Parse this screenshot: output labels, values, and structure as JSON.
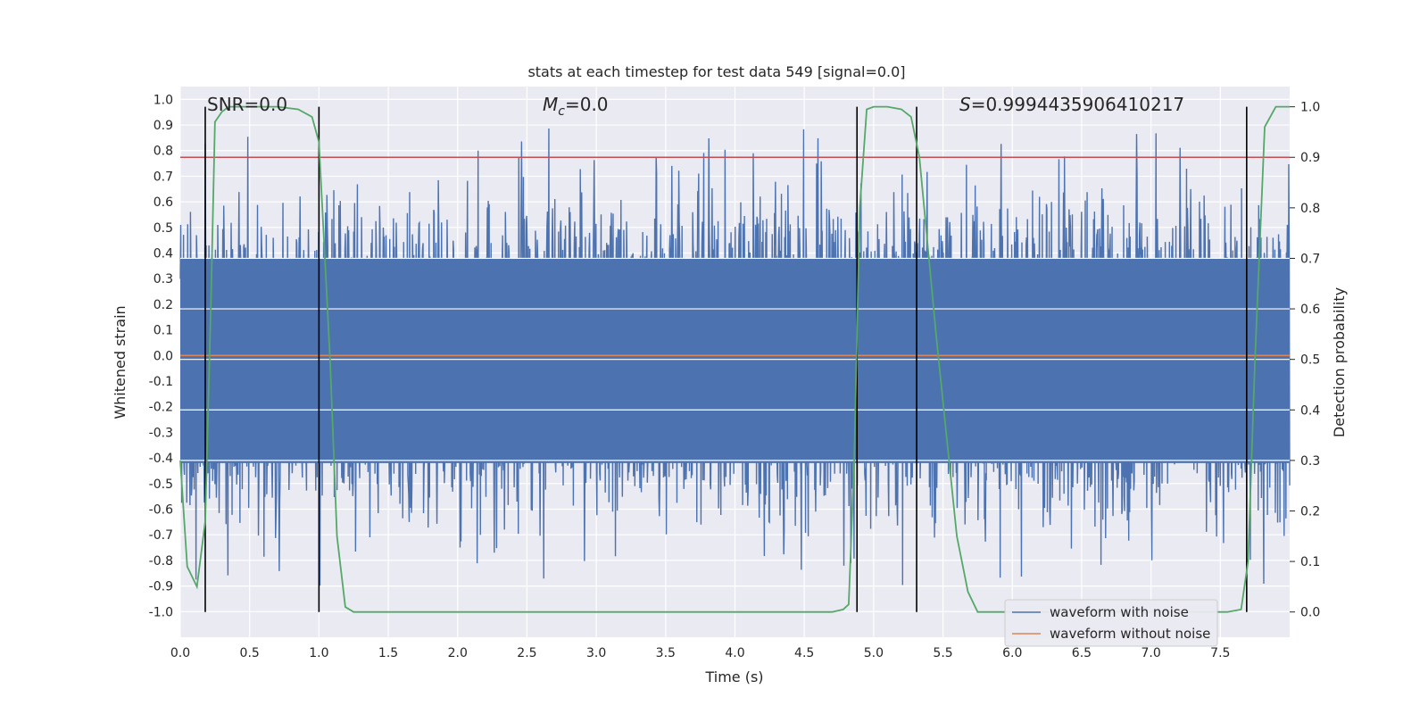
{
  "chart_data": {
    "type": "line",
    "title": "stats at each timestep for test data 549 [signal=0.0]",
    "xlabel": "Time (s)",
    "ylabel": "Whitened strain",
    "y2label": "Detection probability",
    "xlim": [
      0.0,
      8.0
    ],
    "ylim": [
      -1.1,
      1.05
    ],
    "y2lim": [
      -0.05,
      1.04
    ],
    "x_ticks": [
      "0.0",
      "0.5",
      "1.0",
      "1.5",
      "2.0",
      "2.5",
      "3.0",
      "3.5",
      "4.0",
      "4.5",
      "5.0",
      "5.5",
      "6.0",
      "6.5",
      "7.0",
      "7.5"
    ],
    "y_ticks": [
      "1.0",
      "0.9",
      "0.8",
      "0.7",
      "0.6",
      "0.5",
      "0.4",
      "0.3",
      "0.2",
      "0.1",
      "0.0",
      "-0.1",
      "-0.2",
      "-0.3",
      "-0.4",
      "-0.5",
      "-0.6",
      "-0.7",
      "-0.8",
      "-0.9",
      "-1.0"
    ],
    "y2_ticks": [
      "1.0",
      "0.9",
      "0.8",
      "0.7",
      "0.6",
      "0.5",
      "0.4",
      "0.3",
      "0.2",
      "0.1",
      "0.0"
    ],
    "grid": true,
    "legend_position": "bottom-right",
    "annotations": {
      "snr": "SNR=0.0",
      "mc_symbol": "M",
      "mc_sub": "c",
      "mc_value": "=0.0",
      "s_symbol": "S",
      "s_value": "=0.9994435906410217"
    },
    "series": [
      {
        "name": "waveform with noise",
        "color": "#4c72b0",
        "note_shape": "noise band",
        "core_envelope": [
          -0.42,
          0.38
        ],
        "typical_peak_high": 0.55,
        "typical_peak_low": -0.55,
        "max_spike": 0.97,
        "min_spike": -1.0
      },
      {
        "name": "waveform without noise",
        "color": "#dd8452",
        "y": 0.0
      },
      {
        "name": "detection probability",
        "color": "#55a868",
        "axis": "right",
        "x": [
          0.0,
          0.05,
          0.12,
          0.18,
          0.22,
          0.25,
          0.3,
          0.35,
          0.5,
          0.7,
          0.85,
          0.95,
          1.0,
          1.08,
          1.13,
          1.19,
          1.25,
          4.7,
          4.78,
          4.82,
          4.86,
          4.9,
          4.95,
          5.0,
          5.1,
          5.2,
          5.27,
          5.33,
          5.45,
          5.6,
          5.68,
          5.75,
          7.55,
          7.65,
          7.7,
          7.75,
          7.82,
          7.9,
          8.0
        ],
        "y": [
          0.3,
          0.09,
          0.05,
          0.18,
          0.6,
          0.97,
          0.99,
          1.0,
          1.0,
          1.0,
          0.995,
          0.98,
          0.93,
          0.5,
          0.15,
          0.01,
          0.0,
          0.0,
          0.005,
          0.015,
          0.3,
          0.8,
          0.995,
          1.0,
          1.0,
          0.995,
          0.98,
          0.9,
          0.55,
          0.15,
          0.04,
          0.0,
          0.0,
          0.005,
          0.1,
          0.5,
          0.96,
          1.0,
          1.0
        ]
      },
      {
        "name": "threshold",
        "color": "#c44e52",
        "axis": "right",
        "y": 0.9
      }
    ],
    "vertical_markers": [
      0.18,
      1.0,
      4.88,
      5.31,
      7.69
    ],
    "horizontal_extra_gridlines": [
      0.5,
      0.7,
      0.4,
      0.6,
      0.3
    ]
  }
}
